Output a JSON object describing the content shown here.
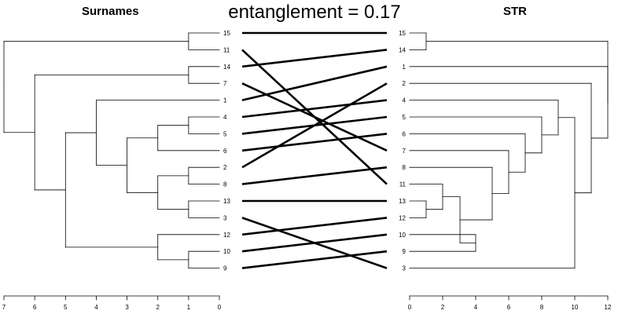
{
  "main_title": "entanglement = 0.17",
  "left": {
    "title": "Surnames",
    "leaves": [
      "15",
      "11",
      "14",
      "7",
      "1",
      "4",
      "5",
      "6",
      "2",
      "8",
      "13",
      "3",
      "12",
      "10",
      "9"
    ],
    "axis_ticks": [
      7,
      6,
      5,
      4,
      3,
      2,
      1,
      0
    ],
    "axis_range": [
      7,
      0
    ],
    "merges": [
      {
        "children": [
          "15",
          "11"
        ],
        "height": 1
      },
      {
        "children": [
          "14",
          "7"
        ],
        "height": 1
      },
      {
        "children": [
          "4",
          "5"
        ],
        "height": 1
      },
      {
        "children": [
          "2",
          "8"
        ],
        "height": 1
      },
      {
        "children": [
          "13",
          "3"
        ],
        "height": 1
      },
      {
        "children": [
          "10",
          "9"
        ],
        "height": 1
      },
      {
        "children": [
          "4-5",
          "6"
        ],
        "height": 2
      },
      {
        "children": [
          "2-8",
          "13-3"
        ],
        "height": 2
      },
      {
        "children": [
          "12",
          "10-9"
        ],
        "height": 2
      },
      {
        "children": [
          "4-5-6",
          "2-8-13-3"
        ],
        "height": 3
      },
      {
        "children": [
          "1",
          "4-5-6-2-8-13-3"
        ],
        "height": 4
      },
      {
        "children": [
          "1-4-5-6-2-8-13-3",
          "12-10-9"
        ],
        "height": 5
      },
      {
        "children": [
          "14-7",
          "1-...-9"
        ],
        "height": 6
      },
      {
        "children": [
          "15-11",
          "14-7-..."
        ],
        "height": 7
      }
    ]
  },
  "right": {
    "title": "STR",
    "leaves": [
      "15",
      "14",
      "1",
      "2",
      "4",
      "5",
      "6",
      "7",
      "8",
      "11",
      "13",
      "12",
      "10",
      "9",
      "3"
    ],
    "axis_ticks": [
      0,
      2,
      4,
      6,
      8,
      10,
      12
    ],
    "axis_range": [
      0,
      12
    ],
    "merges": [
      {
        "children": [
          "15",
          "14"
        ],
        "height": 1
      },
      {
        "children": [
          "13",
          "12"
        ],
        "height": 1
      },
      {
        "children": [
          "11",
          "13-12"
        ],
        "height": 2
      },
      {
        "children": [
          "10",
          "9"
        ],
        "height": 4
      },
      {
        "children": [
          "11-13-12",
          "10-9"
        ],
        "height": 3
      },
      {
        "children": [
          "8",
          "11-...-9"
        ],
        "height": 5
      },
      {
        "children": [
          "7",
          "8-..."
        ],
        "height": 6
      },
      {
        "children": [
          "6",
          "7-..."
        ],
        "height": 7
      },
      {
        "children": [
          "5",
          "6-..."
        ],
        "height": 8
      },
      {
        "children": [
          "4",
          "5-..."
        ],
        "height": 9
      },
      {
        "children": [
          "4-...-9",
          "3"
        ],
        "height": 10
      },
      {
        "children": [
          "2",
          "4-...-3"
        ],
        "height": 11
      },
      {
        "children": [
          "1",
          "2-..."
        ],
        "height": 12
      },
      {
        "children": [
          "15-14",
          "1-..."
        ],
        "height": 13
      }
    ]
  },
  "connections": [
    [
      "15",
      "15"
    ],
    [
      "11",
      "11"
    ],
    [
      "14",
      "14"
    ],
    [
      "7",
      "7"
    ],
    [
      "1",
      "1"
    ],
    [
      "4",
      "4"
    ],
    [
      "5",
      "5"
    ],
    [
      "6",
      "6"
    ],
    [
      "2",
      "2"
    ],
    [
      "8",
      "8"
    ],
    [
      "13",
      "13"
    ],
    [
      "3",
      "3"
    ],
    [
      "12",
      "12"
    ],
    [
      "10",
      "10"
    ],
    [
      "9",
      "9"
    ]
  ]
}
